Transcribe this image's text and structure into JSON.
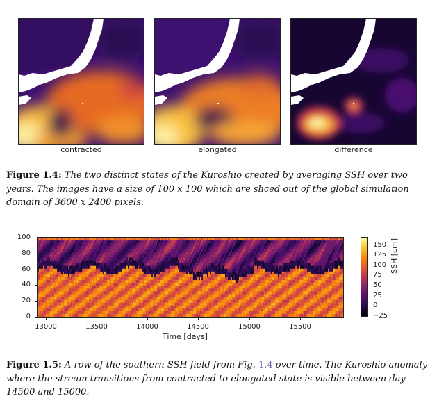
{
  "panels": [
    {
      "label": "contracted"
    },
    {
      "label": "elongated"
    },
    {
      "label": "difference"
    }
  ],
  "figure_1_4": {
    "number": "Figure 1.4:",
    "text": "The two distinct states of the Kuroshio created by averaging SSH over two years. The images have a size of 100 x 100 which are sliced out of the global simulation domain of 3600 x 2400 pixels."
  },
  "figure_1_5": {
    "number": "Figure 1.5:",
    "text_before": "A row of the southern SSH field from Fig.",
    "ref": "1.4",
    "text_after": "over time. The Kuroshio anomaly where the stream transitions from contracted to elongated state is visible between day 14500 and 15000."
  },
  "chart_data": [
    {
      "type": "heatmap",
      "xlabel": "Time [days]",
      "ylabel": "",
      "xlim": [
        12930,
        15930
      ],
      "ylim": [
        0,
        100
      ],
      "x_ticks": [
        "13000",
        "13500",
        "14000",
        "14500",
        "15000",
        "15500"
      ],
      "y_ticks": [
        "0",
        "20",
        "40",
        "60",
        "80",
        "100"
      ],
      "colorbar_label": "SSH [cm]",
      "colorbar_range": [
        -25,
        160
      ],
      "colorbar_ticks": [
        "150",
        "125",
        "100",
        "75",
        "50",
        "25",
        "0",
        "−25"
      ],
      "colormap": "inferno"
    }
  ]
}
